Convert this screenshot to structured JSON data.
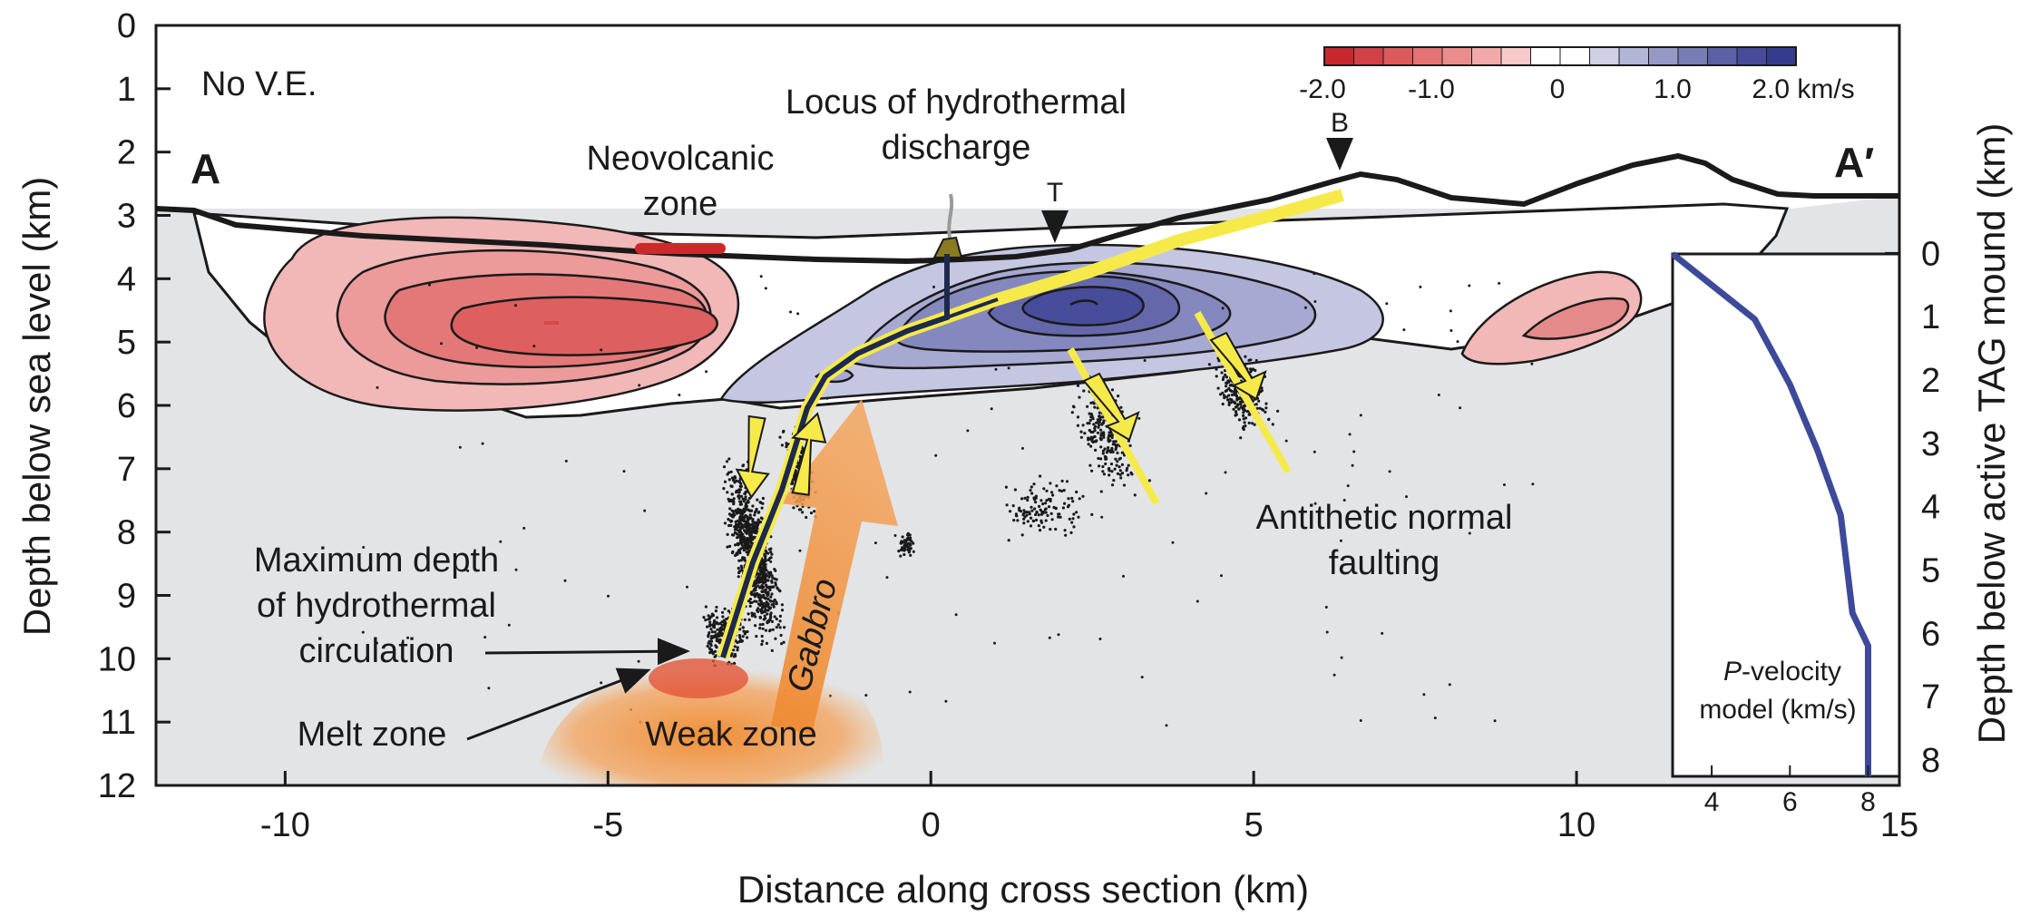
{
  "figure": {
    "panel_left_label": "A",
    "panel_right_label": "A′",
    "ve_note": "No V.E.",
    "x_label": "Distance along cross section (km)",
    "y_label_left": "Depth below sea level (km)",
    "y_label_right": "Depth below active TAG mound (km)",
    "x_ticks": [
      "-10",
      "-5",
      "0",
      "5",
      "10",
      "15"
    ],
    "y_ticks_left": [
      "0",
      "1",
      "2",
      "3",
      "4",
      "5",
      "6",
      "7",
      "8",
      "9",
      "10",
      "11",
      "12"
    ],
    "y_ticks_right": [
      "0",
      "1",
      "2",
      "3",
      "4",
      "5",
      "6",
      "7",
      "8"
    ]
  },
  "colorbar": {
    "tick_labels": [
      "-2.0",
      "-1.0",
      "0",
      "1.0",
      "2.0 km/s"
    ],
    "colors": [
      "#c8282e",
      "#d24145",
      "#dc5a5c",
      "#e47374",
      "#eb8d8d",
      "#f2a9a9",
      "#f8c9c9",
      "#ffffff",
      "#ffffff",
      "#cfd0e6",
      "#b3b5d6",
      "#9699c6",
      "#797db6",
      "#5c61a6",
      "#464c99",
      "#353c8e"
    ],
    "range": [
      -2.0,
      2.0
    ]
  },
  "annotations": {
    "neovolcanic": [
      "Neovolcanic",
      "zone"
    ],
    "locus": [
      "Locus of hydrothermal",
      "discharge"
    ],
    "marker_t": "T",
    "marker_b": "B",
    "antithetic": [
      "Antithetic normal",
      "faulting"
    ],
    "max_depth": [
      "Maximum depth",
      "of hydrothermal",
      "circulation"
    ],
    "melt_zone": "Melt zone",
    "weak_zone": "Weak zone",
    "gabbro": "Gabbro"
  },
  "inset": {
    "title_italic": "P",
    "title_rest": "-velocity",
    "title_line2": "model (km/s)",
    "x_ticks": [
      "4",
      "6",
      "8"
    ],
    "profile_depth_km": [
      0,
      1,
      2,
      3,
      4,
      5,
      5.5,
      6,
      7,
      8
    ],
    "profile_velocity_kms": [
      3.0,
      5.1,
      6.0,
      6.7,
      7.3,
      7.5,
      7.6,
      8.0,
      8.0,
      8.0
    ]
  }
}
